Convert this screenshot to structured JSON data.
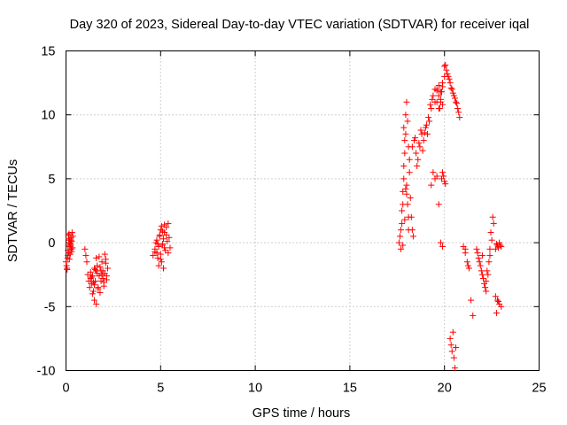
{
  "chart_data": {
    "type": "scatter",
    "title": "Day 320 of 2023, Sidereal Day-to-day VTEC variation (SDTVAR) for receiver iqal",
    "xlabel": "GPS time / hours",
    "ylabel": "SDTVAR / TECUs",
    "xlim": [
      0,
      25
    ],
    "ylim": [
      -10,
      15
    ],
    "xticks": [
      "0",
      "5",
      "10",
      "15",
      "20",
      "25"
    ],
    "yticks": [
      "-10",
      "-5",
      "0",
      "5",
      "10",
      "15"
    ],
    "grid": true,
    "marker": "plus",
    "series": [
      {
        "name": "SDTVAR",
        "color": "#ff0000",
        "x": [
          0.0,
          0.03,
          0.06,
          0.08,
          0.1,
          0.12,
          0.14,
          0.16,
          0.18,
          0.2,
          0.22,
          0.24,
          0.26,
          0.28,
          0.3,
          0.32,
          0.34,
          0.36,
          0.05,
          0.1,
          0.15,
          0.2,
          0.25,
          0.3,
          0.12,
          0.18,
          0.22,
          0.27,
          1.0,
          1.05,
          1.1,
          1.15,
          1.2,
          1.25,
          1.3,
          1.35,
          1.4,
          1.45,
          1.5,
          1.55,
          1.6,
          1.65,
          1.7,
          1.75,
          1.8,
          1.85,
          1.9,
          1.95,
          2.0,
          2.05,
          2.1,
          2.15,
          2.2,
          1.3,
          1.4,
          1.5,
          1.55,
          1.6,
          1.7,
          1.8,
          1.9,
          2.0,
          2.1,
          1.35,
          1.45,
          1.65,
          1.75,
          1.85,
          1.95,
          2.05,
          2.15,
          1.6,
          1.5,
          4.6,
          4.7,
          4.75,
          4.8,
          4.85,
          4.9,
          4.95,
          5.0,
          5.05,
          5.1,
          5.15,
          5.2,
          5.25,
          5.3,
          5.35,
          5.4,
          5.45,
          5.5,
          4.7,
          4.8,
          4.9,
          5.0,
          5.1,
          5.2,
          5.3,
          5.4,
          5.0,
          5.1,
          5.2,
          4.85,
          4.95,
          5.05,
          5.15,
          17.6,
          17.65,
          17.7,
          17.75,
          17.8,
          17.85,
          17.9,
          17.95,
          18.0,
          18.05,
          18.1,
          18.15,
          18.2,
          18.25,
          18.3,
          18.35,
          17.7,
          17.75,
          17.8,
          17.85,
          17.9,
          17.95,
          18.0,
          18.05,
          18.1,
          18.15,
          17.8,
          17.9,
          18.0,
          18.1,
          17.85,
          17.95,
          18.4,
          18.5,
          18.6,
          18.7,
          18.8,
          18.9,
          19.0,
          19.1,
          19.2,
          19.3,
          19.4,
          19.5,
          19.6,
          19.7,
          19.8,
          19.9,
          20.0,
          18.3,
          18.45,
          18.55,
          18.65,
          18.75,
          18.85,
          18.95,
          19.05,
          19.15,
          19.25,
          19.35,
          19.5,
          19.6,
          19.7,
          19.75,
          19.8,
          19.85,
          19.9,
          20.0,
          20.1,
          20.2,
          20.3,
          20.4,
          20.5,
          20.6,
          20.7,
          20.8,
          19.6,
          19.7,
          19.8,
          19.9,
          20.05,
          20.15,
          20.25,
          20.35,
          20.45,
          20.55,
          20.65,
          20.75,
          20.3,
          20.35,
          20.4,
          20.45,
          20.5,
          20.55,
          20.6,
          19.3,
          19.4,
          19.5,
          19.6,
          19.7,
          19.8,
          19.9,
          19.85,
          19.9,
          19.95,
          20.0,
          20.05,
          21.0,
          21.1,
          21.2,
          21.3,
          21.4,
          21.5,
          21.1,
          21.25,
          21.7,
          21.8,
          21.9,
          22.0,
          22.1,
          22.2,
          22.3,
          22.4,
          22.5,
          22.6,
          21.75,
          21.85,
          21.95,
          22.05,
          22.15,
          22.25,
          22.35,
          22.45,
          22.55,
          22.0,
          22.2,
          22.4,
          22.7,
          22.8,
          22.9,
          23.0,
          22.75,
          22.85,
          22.95,
          22.7,
          22.8,
          22.9,
          23.0,
          22.75,
          22.85
        ],
        "y": [
          -1.5,
          -1.8,
          -2.1,
          -1.2,
          -0.6,
          -0.2,
          0.3,
          0.7,
          0.2,
          -0.3,
          -0.9,
          -0.1,
          0.4,
          -0.5,
          0.1,
          0.8,
          -0.4,
          0.5,
          -2.0,
          -1.0,
          -0.8,
          0.0,
          -0.2,
          -0.7,
          0.6,
          -1.3,
          -0.3,
          0.2,
          -0.5,
          -1.0,
          -1.5,
          -2.5,
          -3.0,
          -3.5,
          -2.8,
          -3.2,
          -4.0,
          -3.8,
          -4.5,
          -3.0,
          -2.2,
          -1.8,
          -3.5,
          -2.6,
          -3.9,
          -2.2,
          -1.5,
          -2.8,
          -3.1,
          -2.4,
          -1.6,
          -2.9,
          -2.0,
          -2.3,
          -2.6,
          -3.3,
          -2.1,
          -1.2,
          -3.6,
          -1.9,
          -2.5,
          -3.4,
          -1.3,
          -2.7,
          -3.1,
          -2.4,
          -1.1,
          -3.0,
          -2.2,
          -0.9,
          -2.6,
          -4.8,
          -2.0,
          -1.0,
          -0.5,
          0.0,
          -0.8,
          -1.2,
          -0.3,
          0.5,
          -0.9,
          -1.5,
          -0.2,
          0.3,
          0.8,
          -0.6,
          1.2,
          0.1,
          1.5,
          0.4,
          -0.4,
          -0.7,
          0.2,
          -1.8,
          1.0,
          -0.1,
          1.4,
          0.6,
          -0.8,
          -1.3,
          0.9,
          -0.4,
          -0.1,
          0.6,
          1.3,
          -2.0,
          0.0,
          0.5,
          1.0,
          2.5,
          4.0,
          6.0,
          8.0,
          10.0,
          11.0,
          9.5,
          7.5,
          5.5,
          3.5,
          2.0,
          1.0,
          0.5,
          -0.5,
          1.5,
          3.0,
          5.0,
          7.0,
          8.5,
          4.5,
          3.0,
          2.0,
          6.5,
          -0.2,
          1.8,
          3.8,
          1.0,
          9.0,
          4.2,
          8.0,
          7.0,
          6.5,
          7.5,
          8.5,
          8.0,
          9.0,
          8.5,
          9.5,
          10.5,
          11.5,
          12.0,
          11.0,
          10.5,
          11.8,
          12.5,
          13.0,
          7.5,
          8.2,
          6.0,
          7.8,
          8.8,
          7.2,
          8.6,
          9.2,
          9.8,
          10.8,
          11.2,
          11.0,
          12.0,
          11.5,
          10.5,
          11.0,
          11.8,
          12.2,
          13.8,
          13.5,
          13.0,
          12.5,
          12.0,
          11.5,
          11.0,
          10.5,
          9.8,
          11.9,
          12.3,
          11.2,
          10.8,
          13.9,
          13.2,
          12.8,
          12.1,
          11.7,
          11.3,
          10.9,
          10.2,
          -7.5,
          -8.0,
          -8.5,
          -7.0,
          -9.0,
          -9.8,
          -8.2,
          4.5,
          5.5,
          5.0,
          5.2,
          3.0,
          0.0,
          -0.3,
          5.0,
          5.5,
          5.2,
          4.8,
          4.6,
          -0.3,
          -0.8,
          -1.5,
          -2.0,
          -4.5,
          -5.7,
          -0.5,
          -1.8,
          -0.5,
          -1.2,
          -1.8,
          -2.5,
          -3.2,
          -3.8,
          -2.5,
          -1.0,
          0.2,
          1.5,
          -0.8,
          -1.5,
          -2.2,
          -2.8,
          -3.5,
          -2.2,
          -1.5,
          0.8,
          2.0,
          -1.0,
          -3.0,
          -0.5,
          -0.5,
          -0.2,
          0.0,
          -0.3,
          -0.1,
          -0.4,
          -0.2,
          -4.2,
          -4.5,
          -4.8,
          -5.0,
          -5.5,
          -4.6
        ]
      }
    ]
  }
}
